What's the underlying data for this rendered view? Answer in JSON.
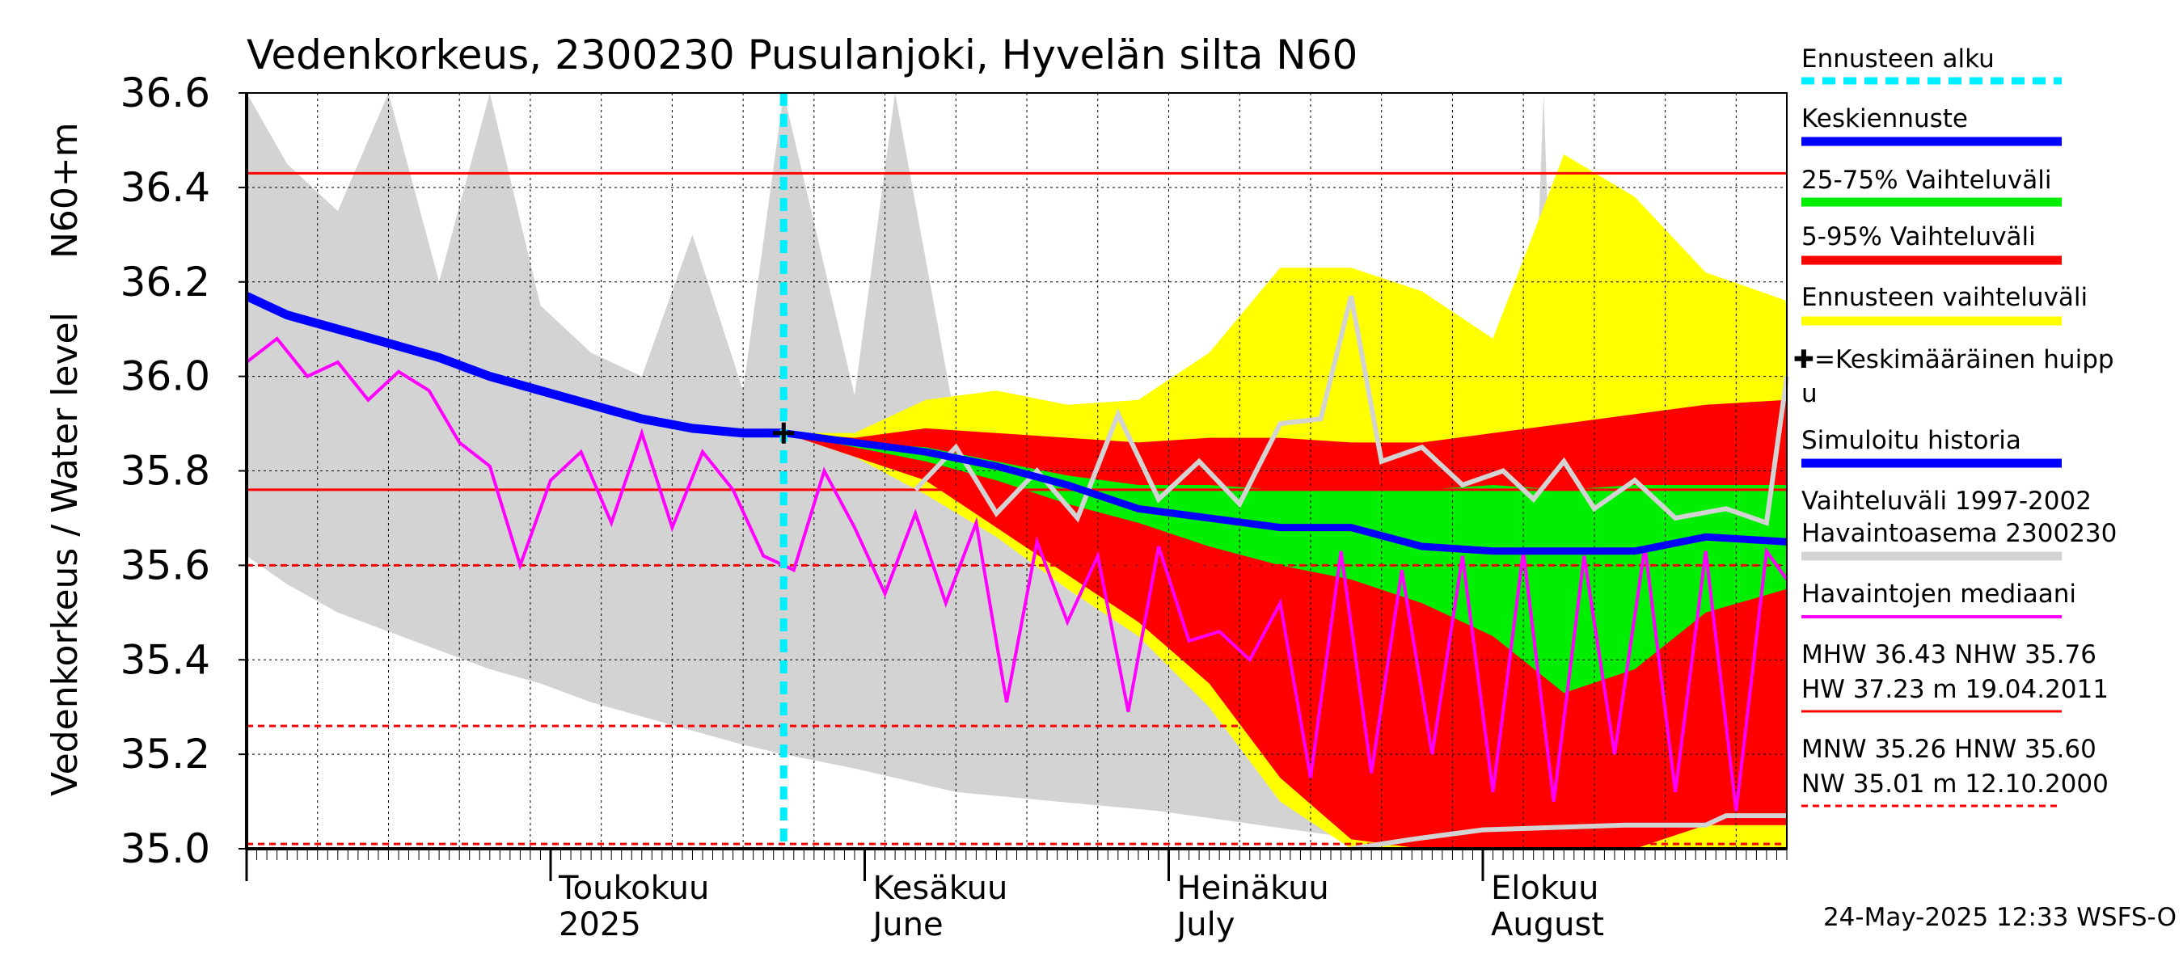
{
  "chart_data": {
    "type": "area",
    "title": "Vedenkorkeus, 2300230 Pusulanjoki, Hyvelän silta N60",
    "ylabel_main": "Vedenkorkeus / Water level",
    "ylabel_unit": "N60+m",
    "ylim": [
      35.0,
      36.6
    ],
    "yticks": [
      "35.0",
      "35.2",
      "35.4",
      "35.6",
      "35.8",
      "36.0",
      "36.2",
      "36.4",
      "36.6"
    ],
    "ytick_values": [
      35.0,
      35.2,
      35.4,
      35.6,
      35.8,
      36.0,
      36.2,
      36.4,
      36.6
    ],
    "x_start": "2025-04-01",
    "x_end": "2025-08-31",
    "month_labels": [
      {
        "top": "Toukokuu",
        "bottom": "2025",
        "date": "2025-05-01"
      },
      {
        "top": "Kesäkuu",
        "bottom": "June",
        "date": "2025-06-01"
      },
      {
        "top": "Heinäkuu",
        "bottom": "July",
        "date": "2025-07-01"
      },
      {
        "top": "Elokuu",
        "bottom": "August",
        "date": "2025-08-01"
      }
    ],
    "grid": true,
    "forecast_start": "2025-05-24",
    "mean_peak_marker": {
      "date": "2025-05-24",
      "value": 35.88
    },
    "reference_lines": {
      "MHW": 36.43,
      "NHW": 35.76,
      "MNW": 35.26,
      "HNW": 35.6,
      "NW": 35.01
    },
    "simulated_history": [
      [
        "2025-04-01",
        36.17
      ],
      [
        "2025-04-05",
        36.13
      ],
      [
        "2025-04-10",
        36.1
      ],
      [
        "2025-04-15",
        36.07
      ],
      [
        "2025-04-20",
        36.04
      ],
      [
        "2025-04-25",
        36.0
      ],
      [
        "2025-04-30",
        35.97
      ],
      [
        "2025-05-05",
        35.94
      ],
      [
        "2025-05-10",
        35.91
      ],
      [
        "2025-05-15",
        35.89
      ],
      [
        "2025-05-20",
        35.88
      ],
      [
        "2025-05-24",
        35.88
      ]
    ],
    "forecast_median": [
      [
        "2025-05-24",
        35.88
      ],
      [
        "2025-05-31",
        35.86
      ],
      [
        "2025-06-07",
        35.84
      ],
      [
        "2025-06-14",
        35.81
      ],
      [
        "2025-06-21",
        35.77
      ],
      [
        "2025-06-28",
        35.72
      ],
      [
        "2025-07-05",
        35.7
      ],
      [
        "2025-07-12",
        35.68
      ],
      [
        "2025-07-19",
        35.68
      ],
      [
        "2025-07-26",
        35.64
      ],
      [
        "2025-08-02",
        35.63
      ],
      [
        "2025-08-09",
        35.63
      ],
      [
        "2025-08-16",
        35.63
      ],
      [
        "2025-08-23",
        35.66
      ],
      [
        "2025-08-31",
        35.65
      ]
    ],
    "band_forecast_range": [
      [
        "2025-05-24",
        35.88,
        35.88
      ],
      [
        "2025-05-31",
        35.88,
        35.83
      ],
      [
        "2025-06-07",
        35.95,
        35.75
      ],
      [
        "2025-06-14",
        35.97,
        35.66
      ],
      [
        "2025-06-21",
        35.94,
        35.55
      ],
      [
        "2025-06-28",
        35.95,
        35.45
      ],
      [
        "2025-07-05",
        36.05,
        35.3
      ],
      [
        "2025-07-12",
        36.23,
        35.1
      ],
      [
        "2025-07-19",
        36.23,
        35.0
      ],
      [
        "2025-07-26",
        36.18,
        35.0
      ],
      [
        "2025-08-02",
        36.08,
        35.0
      ],
      [
        "2025-08-09",
        36.47,
        35.0
      ],
      [
        "2025-08-16",
        36.38,
        35.0
      ],
      [
        "2025-08-23",
        36.22,
        35.0
      ],
      [
        "2025-08-31",
        36.16,
        35.0
      ]
    ],
    "band_5_95": [
      [
        "2025-05-24",
        35.88,
        35.88
      ],
      [
        "2025-05-31",
        35.87,
        35.83
      ],
      [
        "2025-06-07",
        35.89,
        35.78
      ],
      [
        "2025-06-14",
        35.88,
        35.68
      ],
      [
        "2025-06-21",
        35.87,
        35.58
      ],
      [
        "2025-06-28",
        35.86,
        35.48
      ],
      [
        "2025-07-05",
        35.87,
        35.35
      ],
      [
        "2025-07-12",
        35.87,
        35.15
      ],
      [
        "2025-07-19",
        35.86,
        35.02
      ],
      [
        "2025-07-26",
        35.86,
        35.0
      ],
      [
        "2025-08-02",
        35.88,
        35.0
      ],
      [
        "2025-08-09",
        35.9,
        35.0
      ],
      [
        "2025-08-16",
        35.92,
        35.0
      ],
      [
        "2025-08-23",
        35.94,
        35.05
      ],
      [
        "2025-08-31",
        35.95,
        35.05
      ]
    ],
    "band_25_75": [
      [
        "2025-05-24",
        35.88,
        35.88
      ],
      [
        "2025-05-31",
        35.86,
        35.85
      ],
      [
        "2025-06-07",
        35.85,
        35.82
      ],
      [
        "2025-06-14",
        35.82,
        35.78
      ],
      [
        "2025-06-21",
        35.79,
        35.73
      ],
      [
        "2025-06-28",
        35.77,
        35.69
      ],
      [
        "2025-07-05",
        35.77,
        35.64
      ],
      [
        "2025-07-12",
        35.76,
        35.6
      ],
      [
        "2025-07-19",
        35.76,
        35.57
      ],
      [
        "2025-07-26",
        35.76,
        35.52
      ],
      [
        "2025-08-02",
        35.77,
        35.45
      ],
      [
        "2025-08-09",
        35.76,
        35.33
      ],
      [
        "2025-08-16",
        35.77,
        35.38
      ],
      [
        "2025-08-23",
        35.77,
        35.5
      ],
      [
        "2025-08-31",
        35.77,
        35.55
      ]
    ],
    "band_history_range": [
      [
        "2025-04-01",
        36.6,
        35.62
      ],
      [
        "2025-04-05",
        36.45,
        35.56
      ],
      [
        "2025-04-10",
        36.35,
        35.5
      ],
      [
        "2025-04-15",
        36.6,
        35.46
      ],
      [
        "2025-04-20",
        36.2,
        35.42
      ],
      [
        "2025-04-25",
        36.6,
        35.38
      ],
      [
        "2025-04-30",
        36.15,
        35.35
      ],
      [
        "2025-05-05",
        36.05,
        35.31
      ],
      [
        "2025-05-10",
        36.0,
        35.28
      ],
      [
        "2025-05-15",
        36.3,
        35.25
      ],
      [
        "2025-05-20",
        35.97,
        35.22
      ],
      [
        "2025-05-24",
        36.6,
        35.2
      ],
      [
        "2025-05-31",
        35.96,
        35.17
      ],
      [
        "2025-06-04",
        36.6,
        35.15
      ],
      [
        "2025-06-10",
        35.9,
        35.12
      ],
      [
        "2025-06-20",
        35.78,
        35.1
      ],
      [
        "2025-06-30",
        35.72,
        35.08
      ],
      [
        "2025-07-10",
        35.62,
        35.05
      ],
      [
        "2025-07-20",
        35.45,
        35.02
      ],
      [
        "2025-08-05",
        35.45,
        35.0
      ],
      [
        "2025-08-07",
        36.6,
        35.0
      ],
      [
        "2025-08-09",
        35.3,
        35.0
      ],
      [
        "2025-08-31",
        35.3,
        35.0
      ]
    ],
    "observation_median": [
      [
        "2025-04-01",
        36.03
      ],
      [
        "2025-04-04",
        36.08
      ],
      [
        "2025-04-07",
        36.0
      ],
      [
        "2025-04-10",
        36.03
      ],
      [
        "2025-04-13",
        35.95
      ],
      [
        "2025-04-16",
        36.01
      ],
      [
        "2025-04-19",
        35.97
      ],
      [
        "2025-04-22",
        35.86
      ],
      [
        "2025-04-25",
        35.81
      ],
      [
        "2025-04-28",
        35.6
      ],
      [
        "2025-05-01",
        35.78
      ],
      [
        "2025-05-04",
        35.84
      ],
      [
        "2025-05-07",
        35.69
      ],
      [
        "2025-05-10",
        35.88
      ],
      [
        "2025-05-13",
        35.68
      ],
      [
        "2025-05-16",
        35.84
      ],
      [
        "2025-05-19",
        35.76
      ],
      [
        "2025-05-22",
        35.62
      ],
      [
        "2025-05-25",
        35.59
      ],
      [
        "2025-05-28",
        35.8
      ],
      [
        "2025-05-31",
        35.68
      ],
      [
        "2025-06-03",
        35.54
      ],
      [
        "2025-06-06",
        35.71
      ],
      [
        "2025-06-09",
        35.52
      ],
      [
        "2025-06-12",
        35.69
      ],
      [
        "2025-06-15",
        35.31
      ],
      [
        "2025-06-18",
        35.65
      ],
      [
        "2025-06-21",
        35.48
      ],
      [
        "2025-06-24",
        35.62
      ],
      [
        "2025-06-27",
        35.29
      ],
      [
        "2025-06-30",
        35.64
      ],
      [
        "2025-07-03",
        35.44
      ],
      [
        "2025-07-06",
        35.46
      ],
      [
        "2025-07-09",
        35.4
      ],
      [
        "2025-07-12",
        35.52
      ],
      [
        "2025-07-15",
        35.15
      ],
      [
        "2025-07-18",
        35.63
      ],
      [
        "2025-07-21",
        35.16
      ],
      [
        "2025-07-24",
        35.59
      ],
      [
        "2025-07-27",
        35.2
      ],
      [
        "2025-07-30",
        35.62
      ],
      [
        "2025-08-02",
        35.12
      ],
      [
        "2025-08-05",
        35.63
      ],
      [
        "2025-08-08",
        35.1
      ],
      [
        "2025-08-11",
        35.62
      ],
      [
        "2025-08-14",
        35.2
      ],
      [
        "2025-08-17",
        35.64
      ],
      [
        "2025-08-20",
        35.12
      ],
      [
        "2025-08-23",
        35.63
      ],
      [
        "2025-08-26",
        35.08
      ],
      [
        "2025-08-29",
        35.63
      ],
      [
        "2025-08-31",
        35.57
      ]
    ],
    "simulated_station_history": [
      [
        "2025-06-06",
        35.76
      ],
      [
        "2025-06-10",
        35.85
      ],
      [
        "2025-06-14",
        35.71
      ],
      [
        "2025-06-18",
        35.8
      ],
      [
        "2025-06-22",
        35.7
      ],
      [
        "2025-06-26",
        35.92
      ],
      [
        "2025-06-30",
        35.74
      ],
      [
        "2025-07-04",
        35.82
      ],
      [
        "2025-07-08",
        35.73
      ],
      [
        "2025-07-12",
        35.9
      ],
      [
        "2025-07-16",
        35.91
      ],
      [
        "2025-07-19",
        36.17
      ],
      [
        "2025-07-22",
        35.82
      ],
      [
        "2025-07-26",
        35.85
      ],
      [
        "2025-07-30",
        35.77
      ],
      [
        "2025-08-03",
        35.8
      ],
      [
        "2025-08-06",
        35.74
      ],
      [
        "2025-08-09",
        35.82
      ],
      [
        "2025-08-12",
        35.72
      ],
      [
        "2025-08-16",
        35.78
      ],
      [
        "2025-08-20",
        35.7
      ],
      [
        "2025-08-25",
        35.72
      ],
      [
        "2025-08-29",
        35.69
      ],
      [
        "2025-08-31",
        36.0
      ]
    ],
    "simulated_station_low": [
      [
        "2025-07-19",
        35.0
      ],
      [
        "2025-07-25",
        35.02
      ],
      [
        "2025-08-01",
        35.04
      ],
      [
        "2025-08-15",
        35.05
      ],
      [
        "2025-08-23",
        35.05
      ],
      [
        "2025-08-25",
        35.07
      ],
      [
        "2025-08-31",
        35.07
      ]
    ],
    "colors": {
      "forecast_range": "#ffff00",
      "band_5_95": "#ff0000",
      "band_25_75": "#00ee00",
      "history_range": "#d3d3d3",
      "median": "#0000ff",
      "observation_median": "#ff00ff",
      "forecast_start": "#00eeff",
      "reference": "#ff0000"
    }
  },
  "legend": {
    "items": [
      {
        "label": "Ennusteen alku",
        "style": "dashed-cyan"
      },
      {
        "label": "Keskiennuste",
        "style": "blue"
      },
      {
        "label": "25-75% Vaihteluväli",
        "style": "green"
      },
      {
        "label": "5-95% Vaihteluväli",
        "style": "red"
      },
      {
        "label": "Ennusteen vaihteluväli",
        "style": "yellow"
      }
    ],
    "peak_line1": "✚=Keskimääräinen huipp",
    "peak_line2": "u",
    "sim_history": "Simuloitu historia",
    "range_line1": "Vaihteluväli 1997-2002",
    "range_line2": " Havaintoasema 2300230",
    "median_obs": "Havaintojen mediaani",
    "stats1": "MHW  36.43 NHW  35.76",
    "stats2": "HW  37.23 m 19.04.2011",
    "stats3": "MNW  35.26 HNW  35.60",
    "stats4": "NW  35.01 m 12.10.2000"
  },
  "timestamp": "24-May-2025 12:33 WSFS-O"
}
